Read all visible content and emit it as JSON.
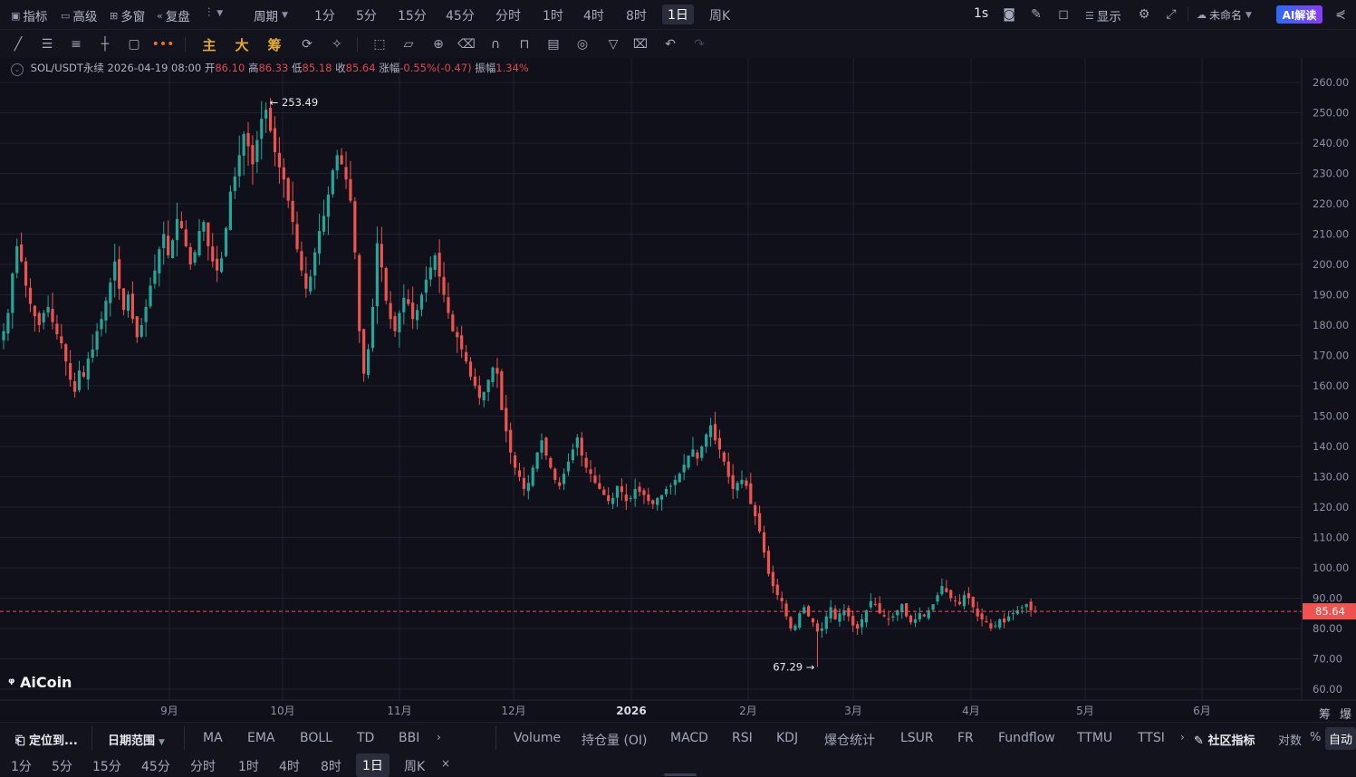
{
  "top": {
    "indicators": "指标",
    "advanced": "高级",
    "multi_window": "多窗",
    "replay": "复盘",
    "period_menu": "周期",
    "periods": [
      "1分",
      "5分",
      "15分",
      "45分",
      "分时",
      "1时",
      "4时",
      "8时",
      "1日",
      "周K"
    ],
    "active_period": "1日",
    "refresh_interval": "1s",
    "display": "显示",
    "layout_name": "未命名",
    "ai_button": "AI解读"
  },
  "toolbar": {
    "main_label": "主",
    "big_label": "大",
    "chip_label": "筹"
  },
  "info": {
    "symbol": "SOL/USDT永续",
    "datetime": "2026-04-19 08:00",
    "open_label": "开",
    "open": "86.10",
    "high_label": "高",
    "high": "86.33",
    "low_label": "低",
    "low": "85.18",
    "close_label": "收",
    "close": "85.64",
    "change_label": "涨幅",
    "change": "-0.55%(-0.47)",
    "amplitude_label": "振幅",
    "amplitude": "1.34%"
  },
  "logo": "AiCoin",
  "bottom1": {
    "locate": "定位到...",
    "date_range": "日期范围",
    "main_indicators": [
      "MA",
      "EMA",
      "BOLL",
      "TD",
      "BBI"
    ],
    "sub_indicators": [
      "Volume",
      "持仓量 (OI)",
      "MACD",
      "RSI",
      "KDJ",
      "爆仓统计",
      "LSUR",
      "FR",
      "Fundflow",
      "TTMU",
      "TTSI"
    ],
    "community": "社区指标",
    "log": "对数",
    "percent": "%",
    "auto": "自动"
  },
  "bottom2": {
    "periods": [
      "1分",
      "5分",
      "15分",
      "45分",
      "分时",
      "1时",
      "4时",
      "8时",
      "1日",
      "周K"
    ],
    "active": "1日",
    "close": "×"
  },
  "right_labels": {
    "chip": "筹",
    "liq": "爆"
  },
  "chart_data": {
    "type": "candlestick",
    "symbol": "SOL/USDT永续",
    "ylim": [
      57,
      265
    ],
    "y_ticks": [
      "260.00",
      "250.00",
      "240.00",
      "230.00",
      "220.00",
      "210.00",
      "200.00",
      "190.00",
      "180.00",
      "170.00",
      "160.00",
      "150.00",
      "140.00",
      "130.00",
      "120.00",
      "110.00",
      "100.00",
      "90.00",
      "80.00",
      "70.00",
      "60.00"
    ],
    "x_ticks": [
      "9月",
      "10月",
      "11月",
      "12月",
      "2026",
      "2月",
      "3月",
      "4月",
      "5月",
      "6月"
    ],
    "last_price": "85.64",
    "max_label": "253.49",
    "min_label": "67.29",
    "colors": {
      "up": "#26a69a",
      "down": "#ef5350",
      "grid": "#1e2130",
      "last_line": "#ef5350"
    },
    "closes": [
      178,
      184,
      197,
      206,
      201,
      193,
      187,
      183,
      180,
      184,
      186,
      181,
      177,
      174,
      168,
      162,
      158,
      165,
      163,
      169,
      172,
      178,
      182,
      188,
      194,
      201,
      192,
      185,
      190,
      182,
      176,
      180,
      186,
      193,
      198,
      205,
      210,
      203,
      208,
      215,
      212,
      206,
      200,
      204,
      211,
      214,
      206,
      201,
      198,
      202,
      212,
      224,
      229,
      236,
      243,
      239,
      233,
      241,
      248,
      251,
      244,
      237,
      232,
      228,
      221,
      214,
      205,
      198,
      192,
      196,
      204,
      211,
      216,
      223,
      231,
      236,
      233,
      228,
      221,
      204,
      178,
      164,
      172,
      186,
      207,
      199,
      188,
      182,
      178,
      184,
      189,
      187,
      182,
      185,
      190,
      195,
      199,
      203,
      196,
      190,
      184,
      178,
      176,
      172,
      168,
      163,
      160,
      156,
      158,
      162,
      166,
      164,
      152,
      145,
      138,
      133,
      130,
      126,
      128,
      133,
      138,
      142,
      137,
      133,
      129,
      127,
      131,
      135,
      139,
      143,
      137,
      133,
      131,
      128,
      126,
      124,
      122,
      123,
      127,
      125,
      122,
      123,
      126,
      125,
      124,
      122,
      121,
      123,
      124,
      126,
      127,
      129,
      131,
      134,
      137,
      139,
      136,
      140,
      144,
      147,
      142,
      139,
      135,
      130,
      126,
      128,
      129,
      127,
      121,
      117,
      112,
      105,
      98,
      94,
      91,
      89,
      84,
      80,
      81,
      85,
      87,
      84,
      82,
      79,
      80,
      84,
      87,
      83,
      85,
      86,
      84,
      81,
      80,
      83,
      86,
      89,
      88,
      85,
      84,
      83,
      84,
      86,
      88,
      84,
      82,
      83,
      85,
      84,
      86,
      88,
      91,
      94,
      92,
      90,
      89,
      88,
      91,
      90,
      87,
      84,
      83,
      82,
      80,
      81,
      83,
      82,
      84,
      85,
      86,
      87,
      88,
      86,
      85.64
    ]
  }
}
